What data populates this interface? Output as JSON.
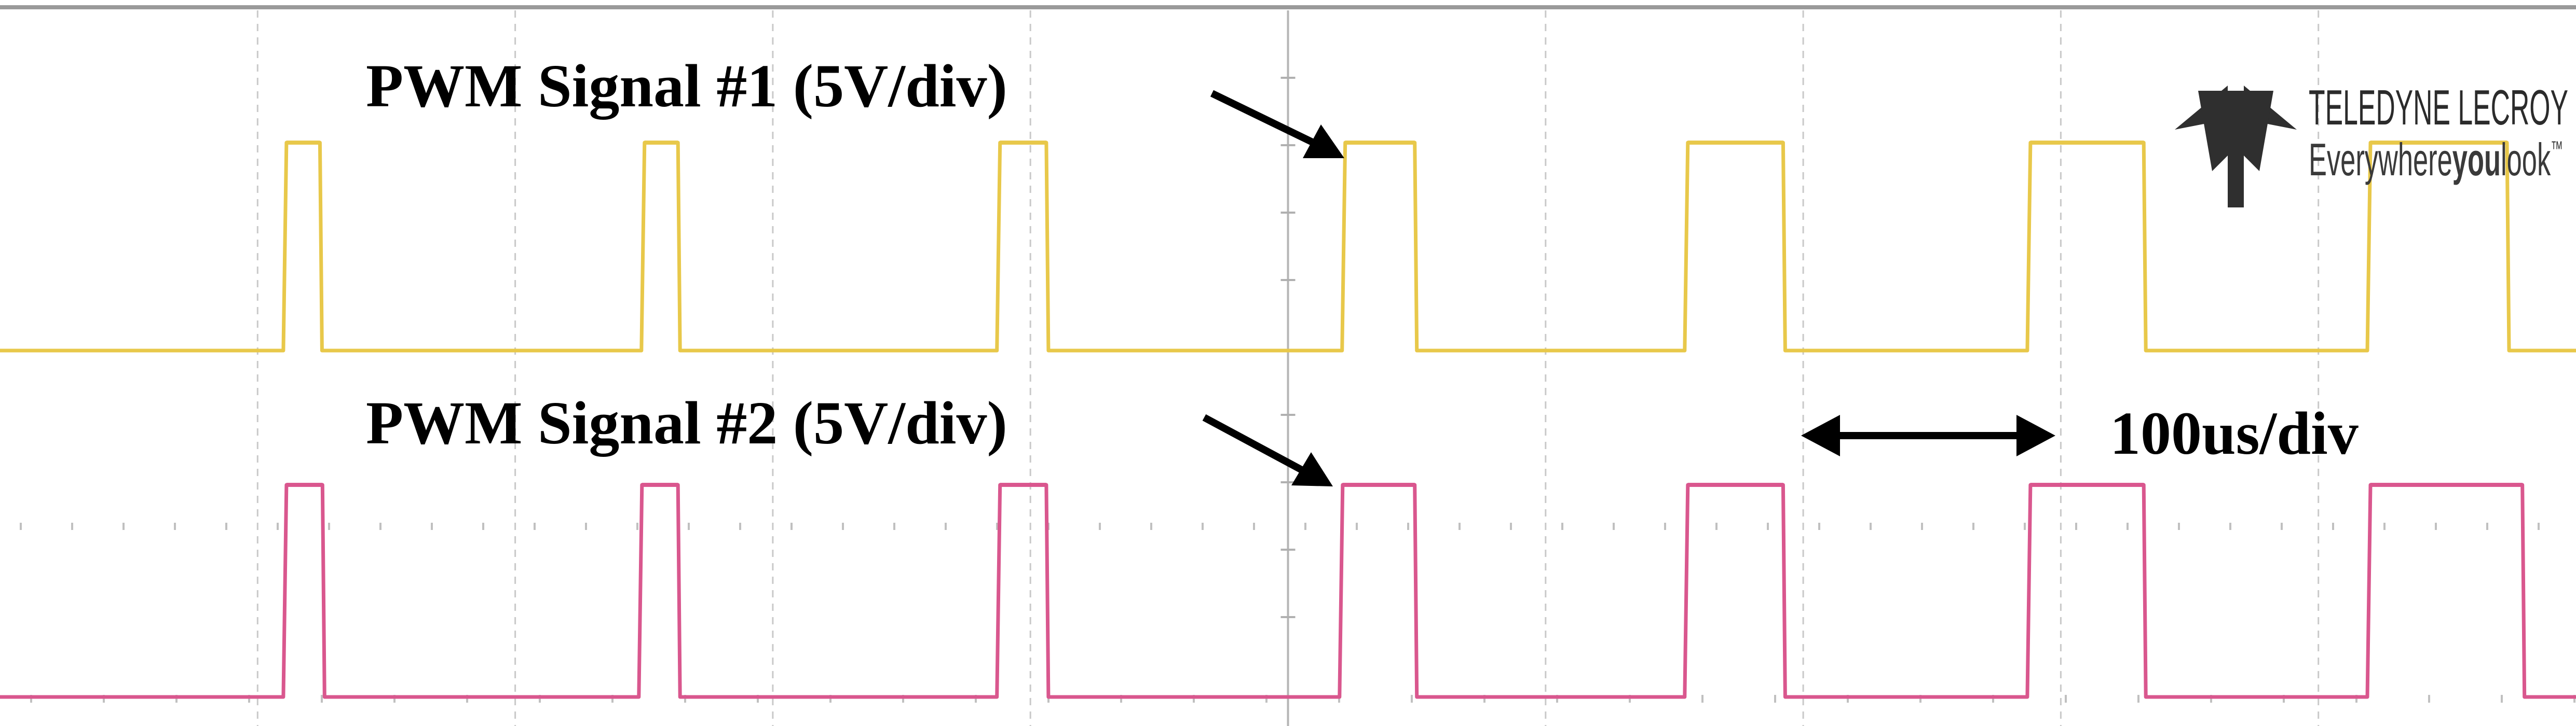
{
  "chart_data": {
    "type": "line",
    "title": "",
    "xlabel": "",
    "ylabel": "",
    "grid": true,
    "grid_divisions_x": 10,
    "time_per_div_us": 100,
    "x_unit": "us",
    "xlim": [
      0,
      1000
    ],
    "series": [
      {
        "name": "PWM Signal #1 (5V/div)",
        "color": "#e8c84a",
        "low_level": 0,
        "high_level": 1,
        "pulses": [
          {
            "rise": 110,
            "fall": 125
          },
          {
            "rise": 249,
            "fall": 264
          },
          {
            "rise": 387,
            "fall": 407
          },
          {
            "rise": 521,
            "fall": 550
          },
          {
            "rise": 654,
            "fall": 693
          },
          {
            "rise": 787,
            "fall": 833
          },
          {
            "rise": 919,
            "fall": 974
          }
        ]
      },
      {
        "name": "PWM Signal #2 (5V/div)",
        "color": "#d9578e",
        "low_level": 0,
        "high_level": 1,
        "pulses": [
          {
            "rise": 110,
            "fall": 126
          },
          {
            "rise": 248,
            "fall": 264
          },
          {
            "rise": 387,
            "fall": 407
          },
          {
            "rise": 520,
            "fall": 550
          },
          {
            "rise": 654,
            "fall": 693
          },
          {
            "rise": 787,
            "fall": 833
          },
          {
            "rise": 919,
            "fall": 980
          }
        ]
      }
    ],
    "annotations": {
      "signal1_label": "PWM Signal #1 (5V/div)",
      "signal2_label": "PWM Signal #2 (5V/div)",
      "timebase_label": "100us/div"
    }
  },
  "logo": {
    "brand": "TELEDYNE LECROY",
    "tagline_pre": "Everywhere",
    "tagline_bold": "you",
    "tagline_post": "look",
    "tagline_mark": "™"
  },
  "colors": {
    "grid": "#c9c9c9",
    "frame": "#9a9a9a",
    "ch1": "#e8c84a",
    "ch2": "#d9578e",
    "annotation": "#000000"
  }
}
